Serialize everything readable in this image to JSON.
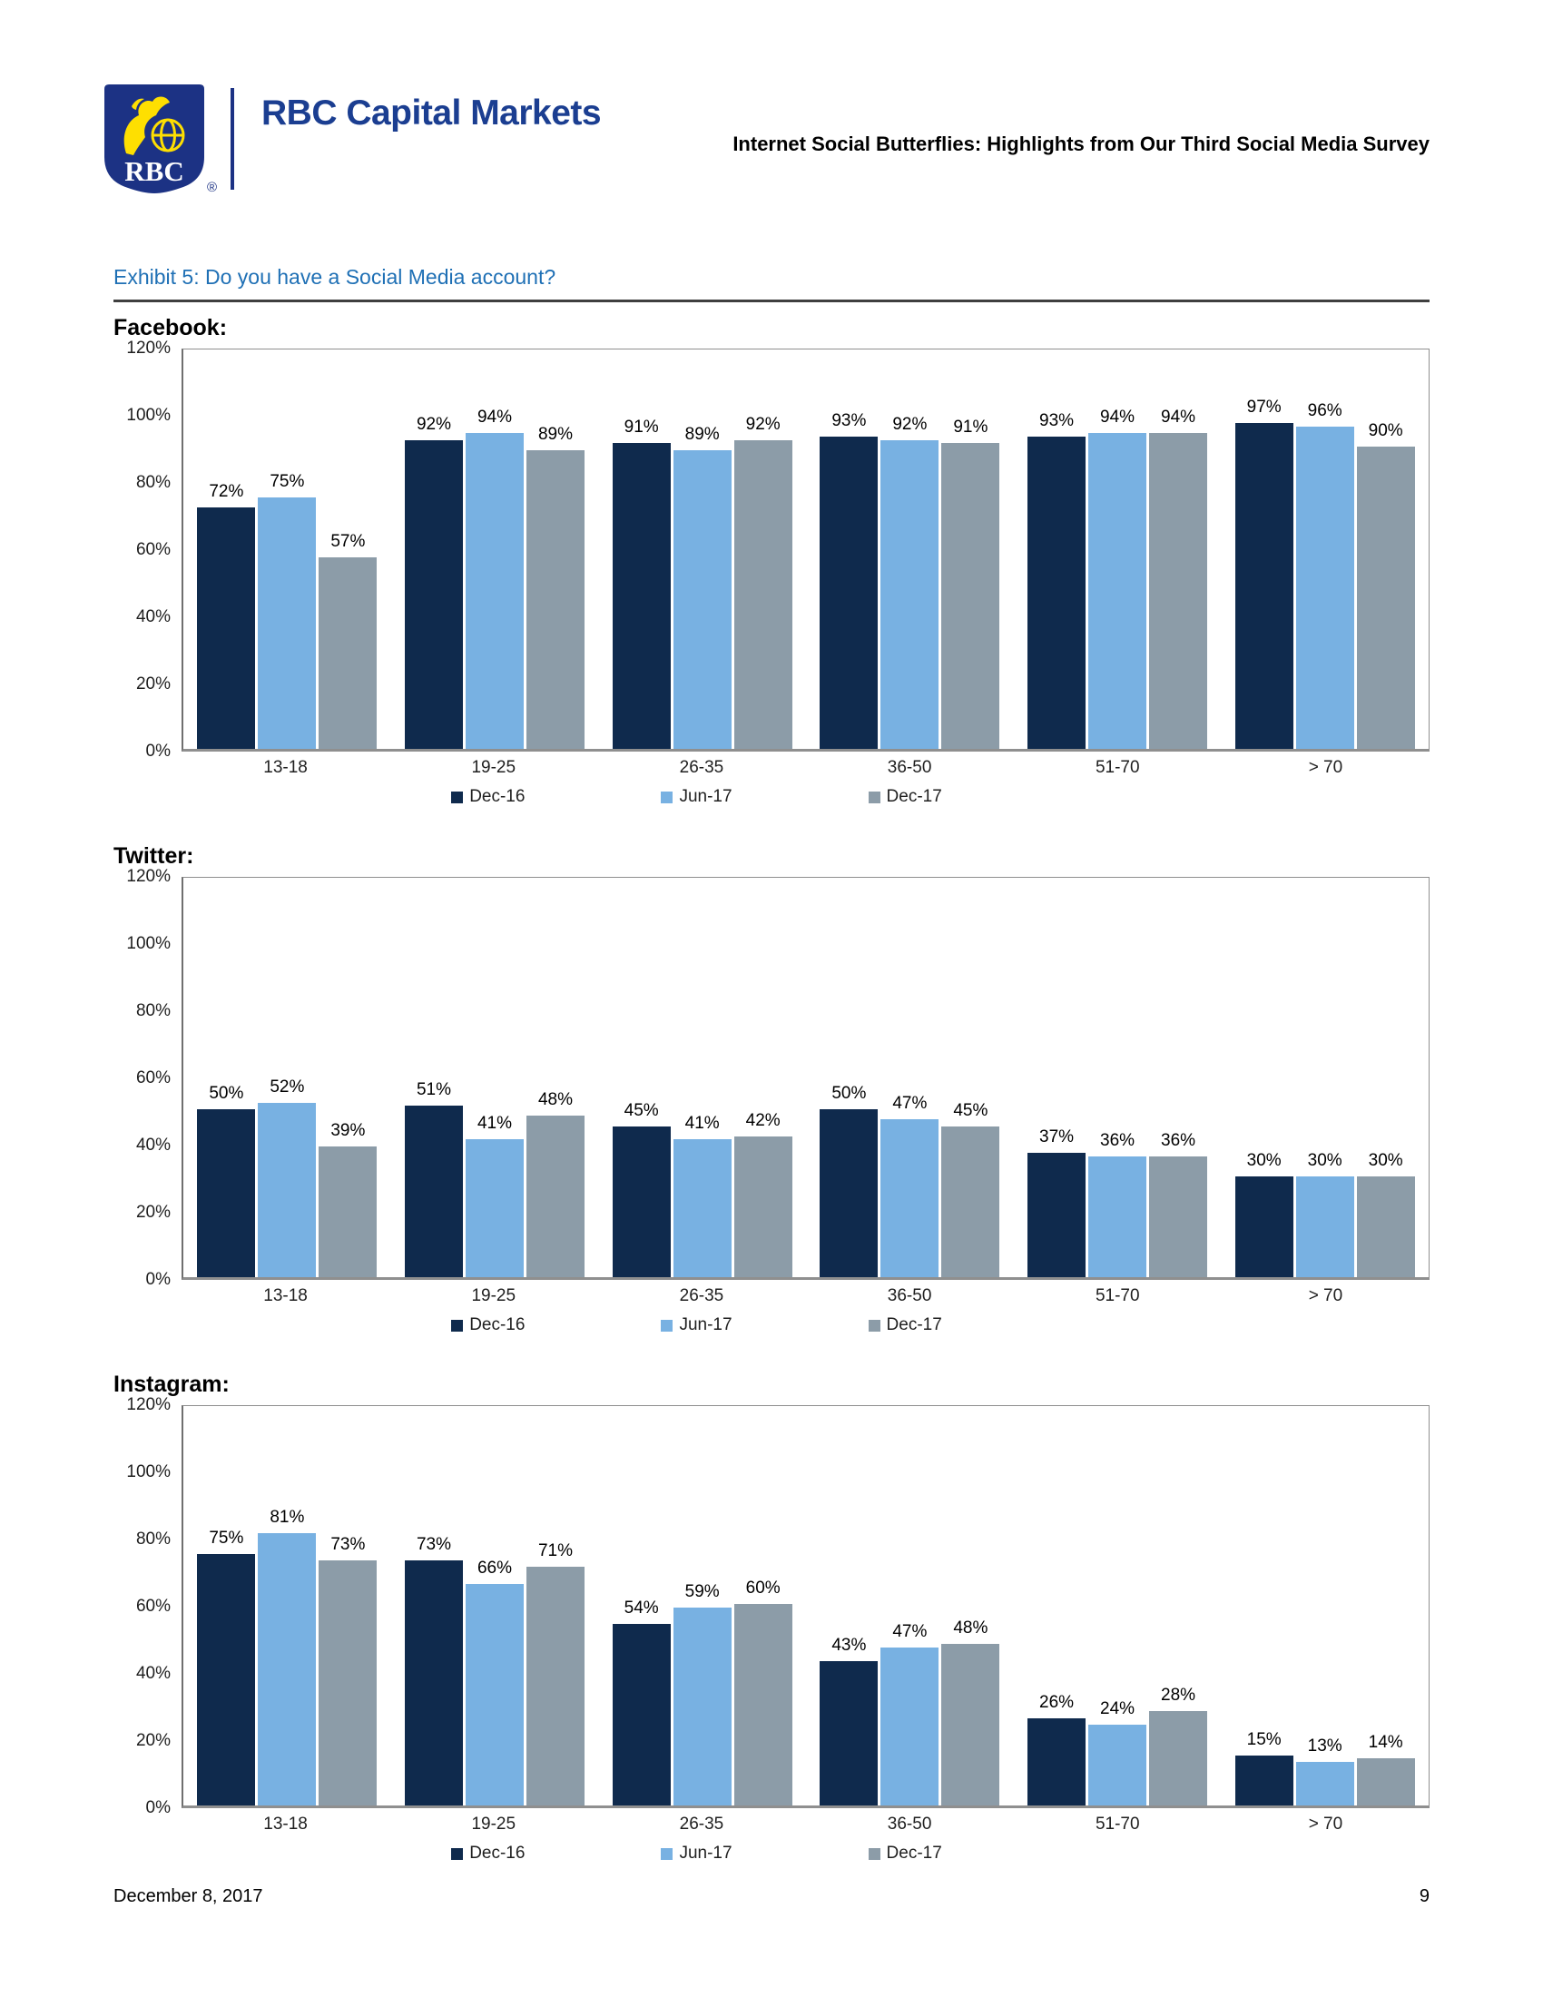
{
  "header": {
    "logo_text": "RBC",
    "brand": "RBC Capital Markets",
    "registered_mark": "®",
    "doc_title": "Internet Social Butterflies: Highlights from Our Third Social Media Survey"
  },
  "exhibit_title": "Exhibit 5: Do you have a Social Media account?",
  "legend": [
    "Dec-16",
    "Jun-17",
    "Dec-17"
  ],
  "colors": {
    "Dec-16": "#0f2a4d",
    "Jun-17": "#78b1e2",
    "Dec-17": "#8c9ca8",
    "brand_blue": "#1b3e91",
    "shield_blue": "#1c3284",
    "logo_gold": "#fedf01",
    "exhibit_blue": "#1f70b5"
  },
  "value_suffix": "%",
  "chart_data": [
    {
      "type": "bar",
      "title": "Facebook:",
      "categories": [
        "13-18",
        "19-25",
        "26-35",
        "36-50",
        "51-70",
        "> 70"
      ],
      "series": [
        {
          "name": "Dec-16",
          "values": [
            72,
            92,
            91,
            93,
            93,
            97
          ]
        },
        {
          "name": "Jun-17",
          "values": [
            75,
            94,
            89,
            92,
            94,
            96
          ]
        },
        {
          "name": "Dec-17",
          "values": [
            57,
            89,
            92,
            91,
            94,
            90
          ]
        }
      ],
      "ylim": [
        0,
        120
      ],
      "yticks": [
        "0%",
        "20%",
        "40%",
        "60%",
        "80%",
        "100%",
        "120%"
      ],
      "grid": false,
      "legend_position": "bottom",
      "xlabel": "",
      "ylabel": ""
    },
    {
      "type": "bar",
      "title": "Twitter:",
      "categories": [
        "13-18",
        "19-25",
        "26-35",
        "36-50",
        "51-70",
        "> 70"
      ],
      "series": [
        {
          "name": "Dec-16",
          "values": [
            50,
            51,
            45,
            50,
            37,
            30
          ]
        },
        {
          "name": "Jun-17",
          "values": [
            52,
            41,
            41,
            47,
            36,
            30
          ]
        },
        {
          "name": "Dec-17",
          "values": [
            39,
            48,
            42,
            45,
            36,
            30
          ]
        }
      ],
      "ylim": [
        0,
        120
      ],
      "yticks": [
        "0%",
        "20%",
        "40%",
        "60%",
        "80%",
        "100%",
        "120%"
      ],
      "grid": false,
      "legend_position": "bottom",
      "xlabel": "",
      "ylabel": ""
    },
    {
      "type": "bar",
      "title": "Instagram:",
      "categories": [
        "13-18",
        "19-25",
        "26-35",
        "36-50",
        "51-70",
        "> 70"
      ],
      "series": [
        {
          "name": "Dec-16",
          "values": [
            75,
            73,
            54,
            43,
            26,
            15
          ]
        },
        {
          "name": "Jun-17",
          "values": [
            81,
            66,
            59,
            47,
            24,
            13
          ]
        },
        {
          "name": "Dec-17",
          "values": [
            73,
            71,
            60,
            48,
            28,
            14
          ]
        }
      ],
      "ylim": [
        0,
        120
      ],
      "yticks": [
        "0%",
        "20%",
        "40%",
        "60%",
        "80%",
        "100%",
        "120%"
      ],
      "grid": false,
      "legend_position": "bottom",
      "xlabel": "",
      "ylabel": ""
    }
  ],
  "footer": {
    "date": "December 8, 2017",
    "page": "9"
  }
}
